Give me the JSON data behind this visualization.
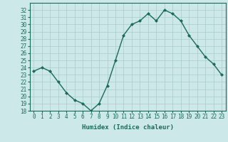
{
  "x": [
    0,
    1,
    2,
    3,
    4,
    5,
    6,
    7,
    8,
    9,
    10,
    11,
    12,
    13,
    14,
    15,
    16,
    17,
    18,
    19,
    20,
    21,
    22,
    23
  ],
  "y": [
    23.5,
    24.0,
    23.5,
    22.0,
    20.5,
    19.5,
    19.0,
    18.0,
    19.0,
    21.5,
    25.0,
    28.5,
    30.0,
    30.5,
    31.5,
    30.5,
    32.0,
    31.5,
    30.5,
    28.5,
    27.0,
    25.5,
    24.5,
    23.0
  ],
  "line_color": "#1a6b5a",
  "marker": "D",
  "marker_size": 2.0,
  "bg_color": "#cce8e8",
  "grid_color": "#aacccc",
  "xlabel": "Humidex (Indice chaleur)",
  "ylim": [
    18,
    33
  ],
  "xlim": [
    -0.5,
    23.5
  ],
  "yticks": [
    18,
    19,
    20,
    21,
    22,
    23,
    24,
    25,
    26,
    27,
    28,
    29,
    30,
    31,
    32
  ],
  "xtick_labels": [
    "0",
    "1",
    "2",
    "3",
    "4",
    "5",
    "6",
    "7",
    "8",
    "9",
    "10",
    "11",
    "12",
    "13",
    "14",
    "15",
    "16",
    "17",
    "18",
    "19",
    "20",
    "21",
    "22",
    "23"
  ],
  "xlabel_fontsize": 6.5,
  "tick_fontsize": 5.5,
  "line_width": 1.0
}
